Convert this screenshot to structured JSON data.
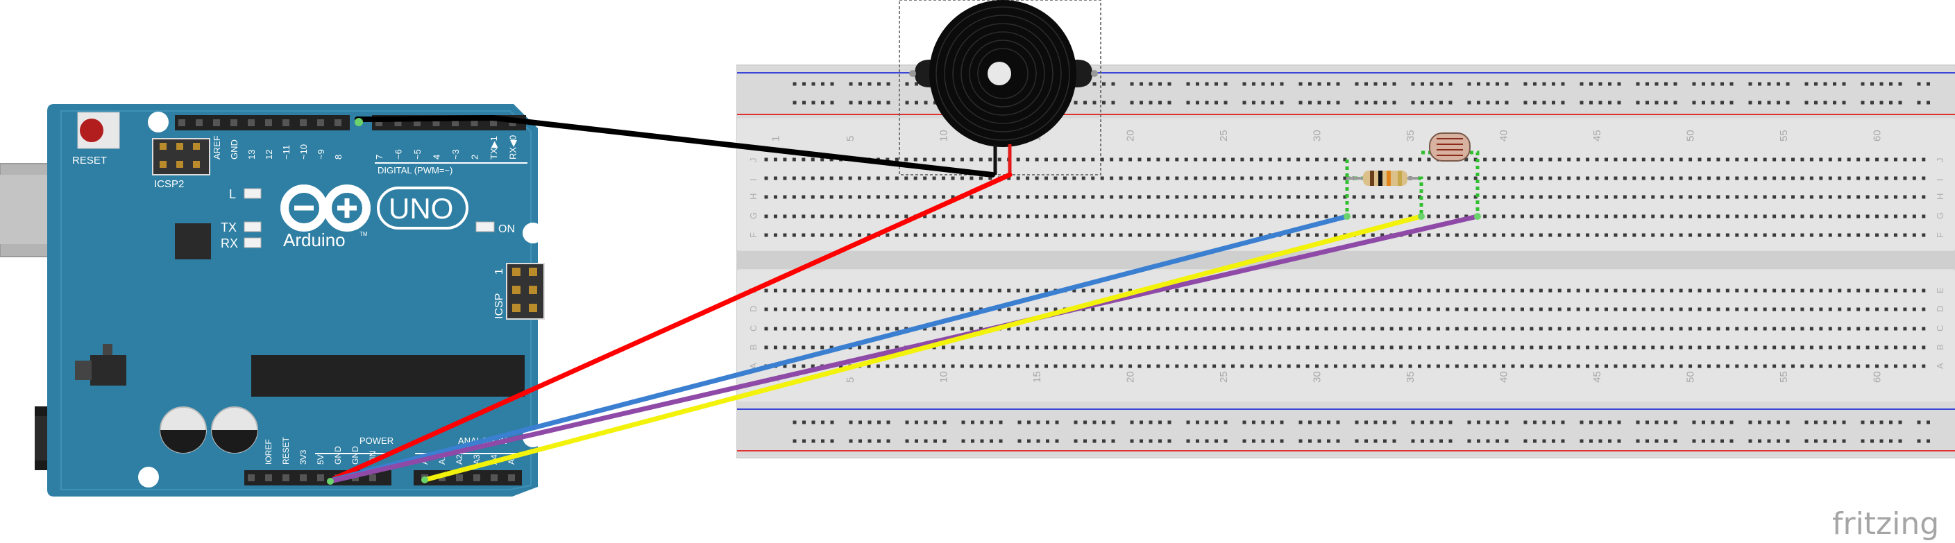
{
  "arduino": {
    "reset_label": "RESET",
    "icsp2_label": "ICSP2",
    "icsp_label": "ICSP",
    "brand_label": "Arduino",
    "tm_label": "TM",
    "model_label": "UNO",
    "digital_label": "DIGITAL (PWM=~)",
    "power_label": "POWER",
    "analog_label": "ANALOG IN",
    "on_label": "ON",
    "l_label": "L",
    "tx_label": "TX",
    "rx_label": "RX",
    "one_label": "1",
    "top_pins": [
      "AREF",
      "GND",
      "13",
      "12",
      "~11",
      "~10",
      "~9",
      "8",
      "7",
      "~6",
      "~5",
      "4",
      "~3",
      "2",
      "TX▶1",
      "RX◀0"
    ],
    "power_pins": [
      "IOREF",
      "RESET",
      "3V3",
      "5V",
      "GND",
      "GND",
      "VIN"
    ],
    "analog_pins": [
      "A0",
      "A1",
      "A2",
      "A3",
      "A4",
      "A5"
    ]
  },
  "breadboard": {
    "col_numbers": [
      "1",
      "5",
      "10",
      "15",
      "20",
      "25",
      "30",
      "35",
      "40",
      "45",
      "50",
      "55",
      "60"
    ],
    "top_rows": [
      "J",
      "I",
      "H",
      "G",
      "F"
    ],
    "bottom_rows": [
      "E",
      "D",
      "C",
      "B",
      "A"
    ]
  },
  "watermark": {
    "text": "fritzing"
  },
  "colors": {
    "arduino_blue": "#2e7fa3",
    "wire_black": "#000000",
    "wire_red": "#ff0000",
    "wire_blue": "#3b7fd1",
    "wire_yellow": "#f2f20a",
    "wire_purple": "#8e4aa6"
  }
}
